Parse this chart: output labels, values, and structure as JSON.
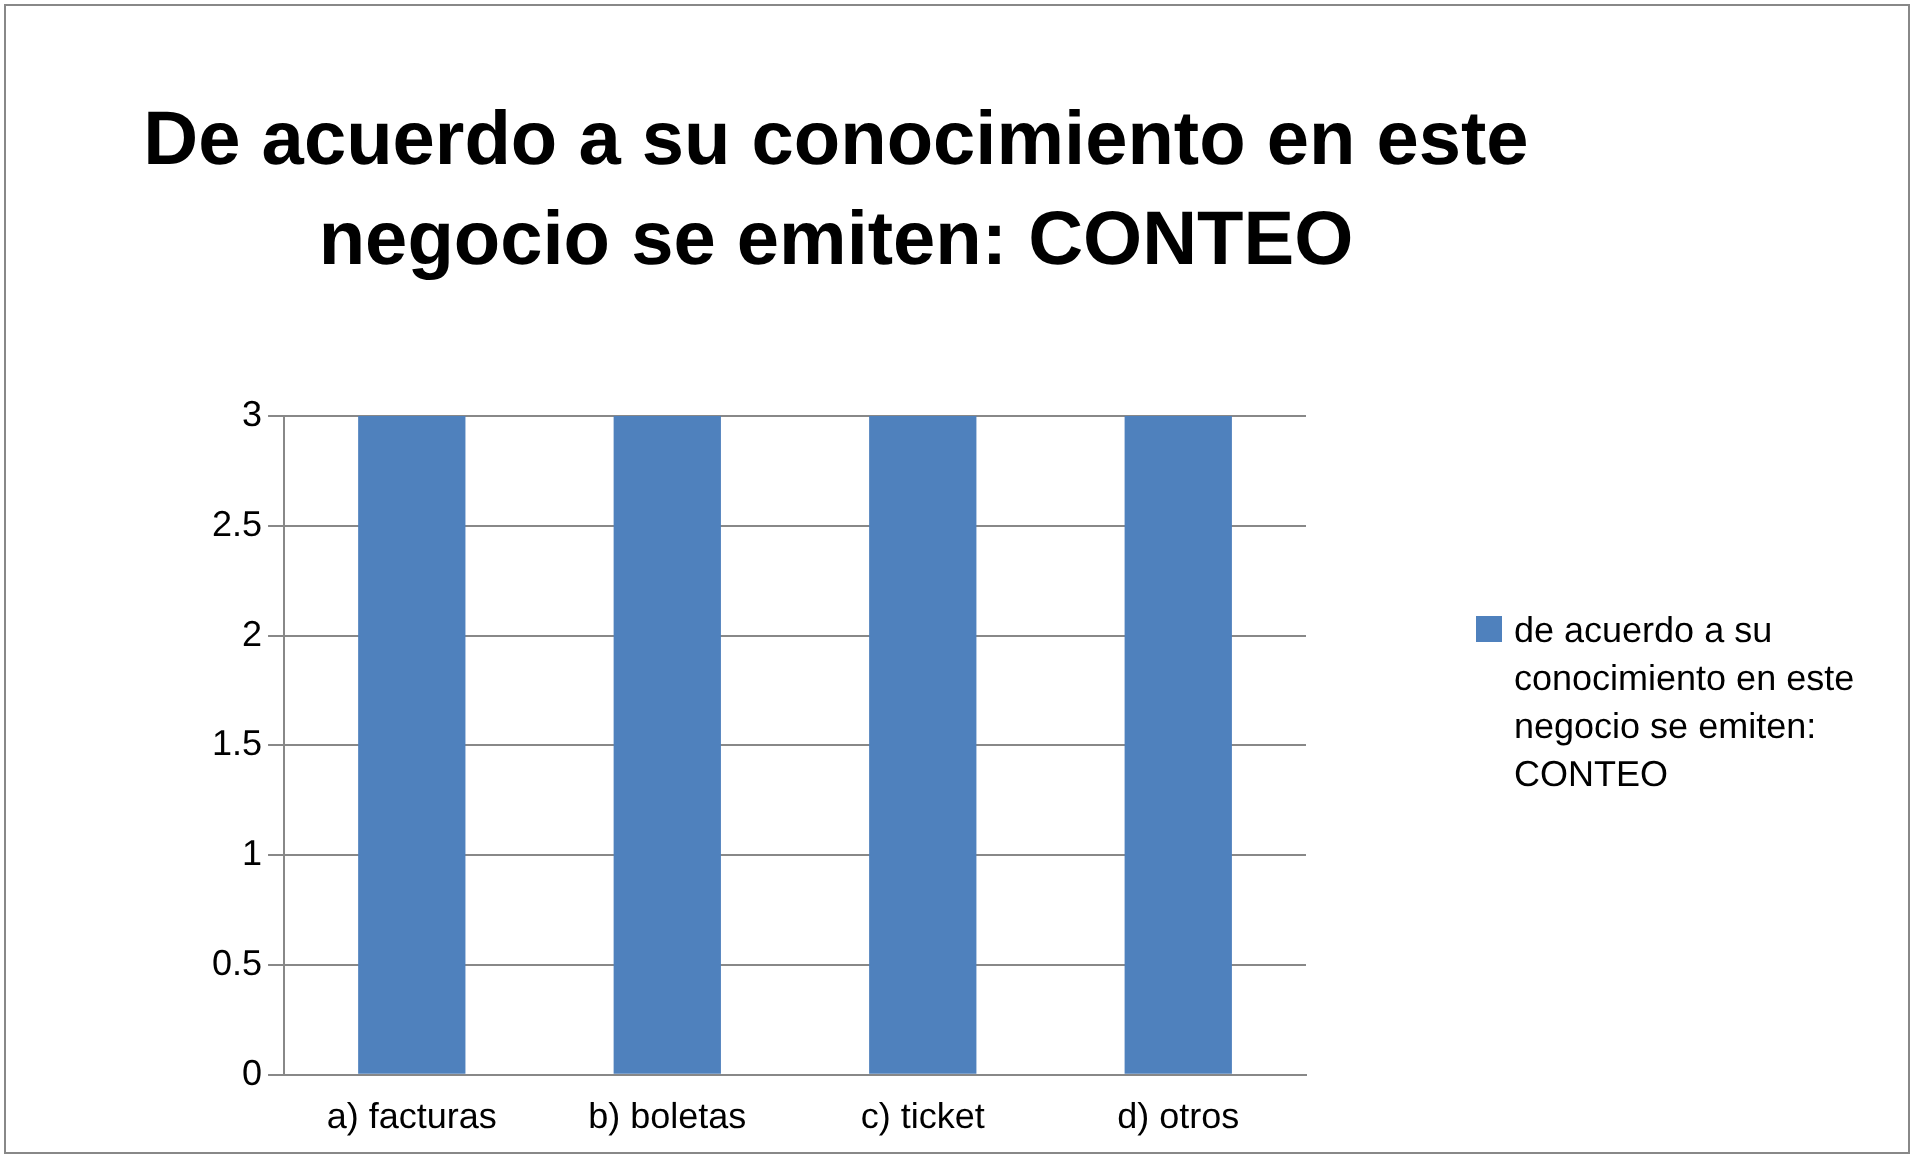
{
  "chart_data": {
    "type": "bar",
    "title": "De acuerdo a su conocimiento en este negocio se emiten: CONTEO",
    "categories": [
      "a) facturas",
      "b) boletas",
      "c) ticket",
      "d) otros"
    ],
    "series": [
      {
        "name": "de acuerdo a su conocimiento en este negocio se emiten: CONTEO",
        "color": "#4f81bd",
        "values": [
          3,
          3,
          3,
          3
        ]
      }
    ],
    "ylim": [
      0,
      3
    ],
    "yticks": [
      0,
      0.5,
      1,
      1.5,
      2,
      2.5,
      3
    ],
    "grid": "y",
    "legend": "right"
  }
}
